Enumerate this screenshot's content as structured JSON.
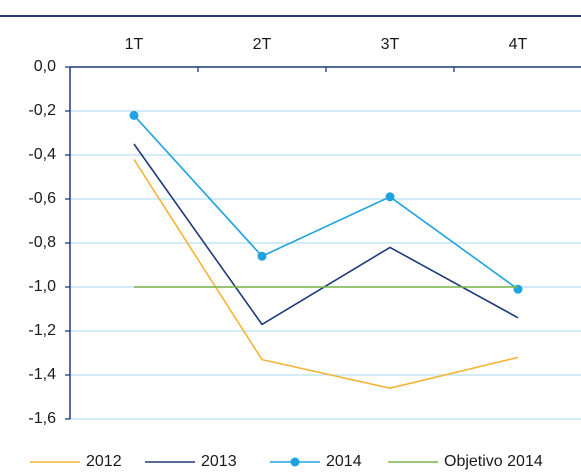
{
  "chart_data": {
    "type": "line",
    "categories": [
      "1T",
      "2T",
      "3T",
      "4T"
    ],
    "series": [
      {
        "name": "2012",
        "color": "#f5b335",
        "marker": false,
        "values": [
          -0.42,
          -1.33,
          -1.46,
          -1.32
        ]
      },
      {
        "name": "2013",
        "color": "#1f3a78",
        "marker": false,
        "values": [
          -0.35,
          -1.17,
          -0.82,
          -1.14
        ]
      },
      {
        "name": "2014",
        "color": "#1ea3e0",
        "marker": true,
        "values": [
          -0.22,
          -0.86,
          -0.59,
          -1.01
        ]
      },
      {
        "name": "Objetivo 2014",
        "color": "#7ab648",
        "marker": false,
        "values": [
          -1.0,
          -1.0,
          -1.0,
          -1.0
        ]
      }
    ],
    "ylim": [
      -1.6,
      0
    ],
    "yticks": [
      {
        "value": 0,
        "label": "0,0"
      },
      {
        "value": -0.2,
        "label": "-0,2"
      },
      {
        "value": -0.4,
        "label": "-0,4"
      },
      {
        "value": -0.6,
        "label": "-0,6"
      },
      {
        "value": -0.8,
        "label": "-0,8"
      },
      {
        "value": -1.0,
        "label": "-1,0"
      },
      {
        "value": -1.2,
        "label": "-1,2"
      },
      {
        "value": -1.4,
        "label": "-1,4"
      },
      {
        "value": -1.6,
        "label": "-1,6"
      }
    ],
    "grid": true,
    "grid_color": "#b7dff2",
    "legend": "bottom"
  }
}
